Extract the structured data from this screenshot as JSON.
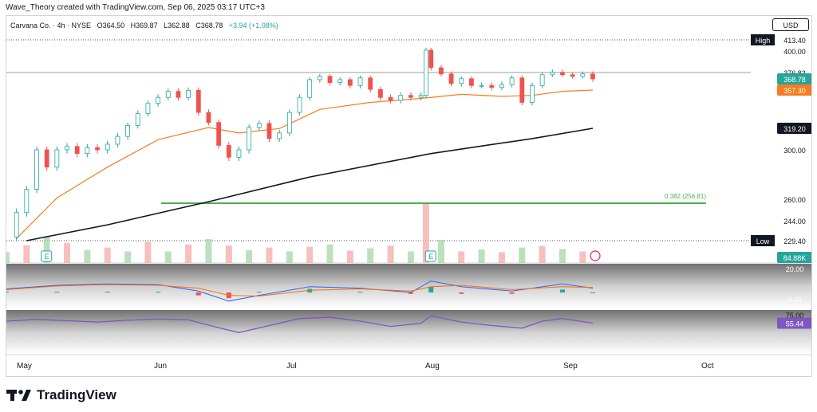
{
  "header": {
    "attribution": "Wave_Theory created with TradingView.com, Sep 06, 2025 03:17 UTC+3"
  },
  "legend": {
    "symbol": "Carvana Co. · 4h · NYSE",
    "open": "O364.50",
    "high": "H369.87",
    "low": "L362.88",
    "close": "C368.78",
    "change": "+3.94 (+1.08%)"
  },
  "currency": "USD",
  "brand": {
    "name": "TradingView"
  },
  "colors": {
    "up": "#26a69a",
    "down": "#ef5350",
    "ema50": "#f57c20",
    "ema200": "#131722",
    "fib": "#4caf50",
    "rsi": "#7e57c2",
    "macd": "#2962ff",
    "signal": "#ff6d00",
    "volume_up": "#a5d6a7",
    "volume_down": "#f4a9a8"
  },
  "chart_data": {
    "type": "candlestick",
    "symbol": "Carvana Co.",
    "timeframe": "4h",
    "exchange": "NYSE",
    "x_ticks": [
      "May",
      "Jun",
      "Jul",
      "Aug",
      "Sep",
      "Oct"
    ],
    "y_ticks": [
      229.4,
      244.0,
      260.0,
      300.0,
      319.2,
      357.3,
      368.78,
      376.83,
      400.0,
      413.4
    ],
    "price_labels": [
      {
        "label": "High",
        "value": "413.40",
        "kind": "high"
      },
      {
        "label": "",
        "value": "400.00",
        "kind": "tick"
      },
      {
        "label": "",
        "value": "376.83",
        "kind": "level"
      },
      {
        "label": "",
        "value": "368.78",
        "kind": "close"
      },
      {
        "label": "",
        "value": "357.30",
        "kind": "ema50"
      },
      {
        "label": "",
        "value": "319.20",
        "kind": "ema200"
      },
      {
        "label": "",
        "value": "300.00",
        "kind": "tick"
      },
      {
        "label": "",
        "value": "260.00",
        "kind": "tick"
      },
      {
        "label": "",
        "value": "244.00",
        "kind": "tick"
      },
      {
        "label": "Low",
        "value": "229.40",
        "kind": "low"
      },
      {
        "label": "",
        "value": "84.88K",
        "kind": "volume"
      }
    ],
    "fib_level": {
      "label": "0.382 (256.81)",
      "value": 256.81
    },
    "horizontal_levels": [
      413.4,
      376.83,
      229.4
    ],
    "ohlc_last": {
      "open": 364.5,
      "high": 369.87,
      "low": 362.88,
      "close": 368.78,
      "change": 3.94,
      "change_pct": 1.08
    },
    "ema50_last": 357.3,
    "ema200_last": 319.2,
    "volume_last": "84.88K",
    "close_path": [
      {
        "x": 0,
        "y": 232
      },
      {
        "x": 2,
        "y": 250
      },
      {
        "x": 4,
        "y": 268
      },
      {
        "x": 6,
        "y": 300
      },
      {
        "x": 8,
        "y": 286
      },
      {
        "x": 10,
        "y": 300
      },
      {
        "x": 12,
        "y": 303
      },
      {
        "x": 14,
        "y": 297
      },
      {
        "x": 16,
        "y": 302
      },
      {
        "x": 18,
        "y": 300
      },
      {
        "x": 20,
        "y": 305
      },
      {
        "x": 22,
        "y": 312
      },
      {
        "x": 24,
        "y": 322
      },
      {
        "x": 26,
        "y": 334
      },
      {
        "x": 28,
        "y": 344
      },
      {
        "x": 30,
        "y": 350
      },
      {
        "x": 32,
        "y": 356
      },
      {
        "x": 34,
        "y": 350
      },
      {
        "x": 36,
        "y": 357
      },
      {
        "x": 38,
        "y": 335
      },
      {
        "x": 40,
        "y": 325
      },
      {
        "x": 42,
        "y": 304
      },
      {
        "x": 44,
        "y": 294
      },
      {
        "x": 46,
        "y": 300
      },
      {
        "x": 48,
        "y": 320
      },
      {
        "x": 50,
        "y": 324
      },
      {
        "x": 52,
        "y": 310
      },
      {
        "x": 54,
        "y": 315
      },
      {
        "x": 56,
        "y": 335
      },
      {
        "x": 58,
        "y": 350
      },
      {
        "x": 60,
        "y": 368
      },
      {
        "x": 62,
        "y": 372
      },
      {
        "x": 64,
        "y": 365
      },
      {
        "x": 66,
        "y": 368
      },
      {
        "x": 68,
        "y": 362
      },
      {
        "x": 70,
        "y": 370
      },
      {
        "x": 72,
        "y": 358
      },
      {
        "x": 74,
        "y": 350
      },
      {
        "x": 76,
        "y": 347
      },
      {
        "x": 78,
        "y": 352
      },
      {
        "x": 80,
        "y": 350
      },
      {
        "x": 82,
        "y": 352
      },
      {
        "x": 83,
        "y": 401
      },
      {
        "x": 84,
        "y": 382
      },
      {
        "x": 86,
        "y": 375
      },
      {
        "x": 88,
        "y": 364
      },
      {
        "x": 90,
        "y": 369
      },
      {
        "x": 92,
        "y": 362
      },
      {
        "x": 94,
        "y": 362
      },
      {
        "x": 96,
        "y": 360
      },
      {
        "x": 98,
        "y": 363
      },
      {
        "x": 100,
        "y": 370
      },
      {
        "x": 102,
        "y": 345
      },
      {
        "x": 104,
        "y": 362
      },
      {
        "x": 106,
        "y": 374
      },
      {
        "x": 108,
        "y": 377
      },
      {
        "x": 110,
        "y": 374
      },
      {
        "x": 112,
        "y": 372
      },
      {
        "x": 114,
        "y": 375
      },
      {
        "x": 116,
        "y": 368.78
      }
    ],
    "ema50_path": [
      {
        "x": 2,
        "y": 231
      },
      {
        "x": 10,
        "y": 261
      },
      {
        "x": 20,
        "y": 286
      },
      {
        "x": 30,
        "y": 309
      },
      {
        "x": 40,
        "y": 320
      },
      {
        "x": 46,
        "y": 315
      },
      {
        "x": 54,
        "y": 319
      },
      {
        "x": 62,
        "y": 338
      },
      {
        "x": 72,
        "y": 345
      },
      {
        "x": 82,
        "y": 349
      },
      {
        "x": 90,
        "y": 353
      },
      {
        "x": 98,
        "y": 351
      },
      {
        "x": 104,
        "y": 352
      },
      {
        "x": 110,
        "y": 356
      },
      {
        "x": 116,
        "y": 357.3
      }
    ],
    "ema200_path": [
      {
        "x": 4,
        "y": 229.4
      },
      {
        "x": 20,
        "y": 241
      },
      {
        "x": 40,
        "y": 258
      },
      {
        "x": 60,
        "y": 278
      },
      {
        "x": 84,
        "y": 297
      },
      {
        "x": 104,
        "y": 310
      },
      {
        "x": 116,
        "y": 319.2
      }
    ],
    "volume": {
      "last": "84.88K",
      "x": [
        0,
        4,
        8,
        12,
        16,
        20,
        24,
        28,
        32,
        36,
        40,
        44,
        48,
        52,
        56,
        60,
        64,
        68,
        72,
        76,
        80,
        83,
        86,
        90,
        94,
        98,
        102,
        106,
        110,
        114
      ],
      "values": [
        28,
        46,
        70,
        52,
        34,
        40,
        30,
        55,
        30,
        48,
        62,
        45,
        33,
        40,
        30,
        42,
        48,
        32,
        38,
        45,
        30,
        155,
        60,
        30,
        35,
        28,
        40,
        44,
        36,
        30
      ]
    },
    "macd": {
      "y_ticks": [
        20.0,
        0.0
      ],
      "x": [
        0,
        10,
        20,
        30,
        38,
        44,
        50,
        60,
        70,
        80,
        84,
        90,
        100,
        110,
        116
      ],
      "macd": [
        5,
        10,
        12,
        11,
        2,
        -12,
        -4,
        8,
        6,
        0,
        16,
        8,
        2,
        12,
        6
      ],
      "signal": [
        4,
        9,
        11,
        10,
        6,
        -4,
        -5,
        3,
        5,
        2,
        8,
        10,
        4,
        8,
        7
      ]
    },
    "rsi": {
      "y_ticks": [
        75.0
      ],
      "last": "55.44",
      "x": [
        0,
        6,
        12,
        18,
        24,
        30,
        36,
        42,
        46,
        52,
        58,
        64,
        70,
        76,
        82,
        84,
        90,
        96,
        102,
        106,
        110,
        116
      ],
      "values": [
        60,
        64,
        61,
        58,
        62,
        65,
        63,
        45,
        34,
        50,
        66,
        69,
        60,
        48,
        55,
        72,
        58,
        50,
        44,
        60,
        66,
        55.44
      ]
    }
  }
}
